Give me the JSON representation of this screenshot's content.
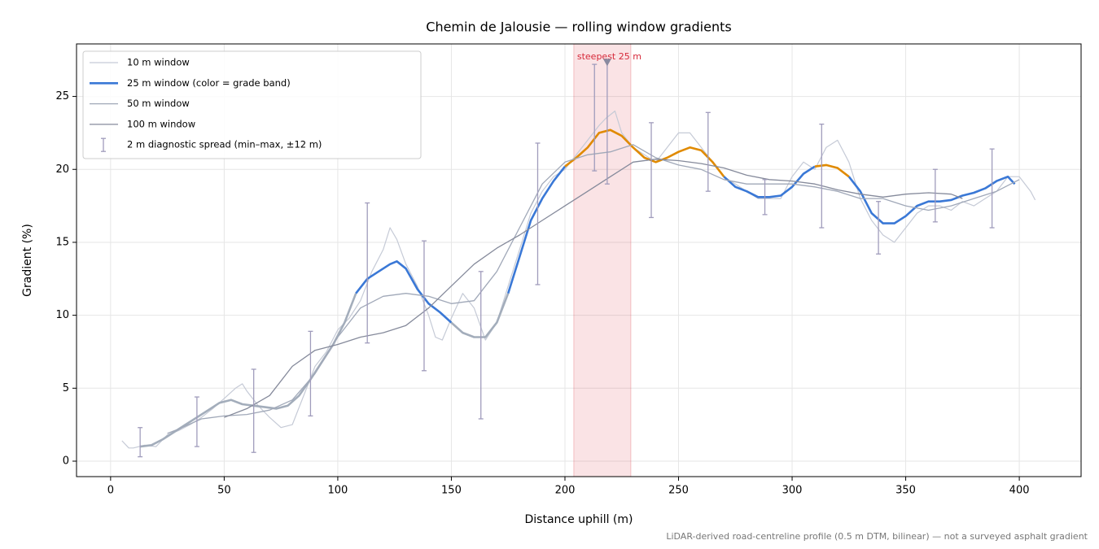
{
  "chart_data": {
    "type": "line",
    "title": "Chemin de Jalousie — rolling window gradients",
    "xlabel": "Distance uphill (m)",
    "ylabel": "Gradient (%)",
    "footnote": "LiDAR-derived road-centreline profile (0.5 m DTM, bilinear) — not a surveyed asphalt gradient",
    "xlim": [
      -15,
      427.2
    ],
    "ylim": [
      -1.06,
      28.6
    ],
    "xticks": [
      0,
      50,
      100,
      150,
      200,
      250,
      300,
      350,
      400
    ],
    "yticks": [
      0,
      5,
      10,
      15,
      20,
      25
    ],
    "grid": true,
    "legend": "upper left",
    "band_limits": [
      10,
      20
    ],
    "band_colors": [
      "#a3adbb",
      "#3a78d6",
      "#e08a00"
    ],
    "series": [
      {
        "name": "10 m window",
        "color": "#c5cad6",
        "width": 1.2,
        "x": [
          5,
          8,
          10,
          15,
          20,
          25,
          30,
          35,
          40,
          45,
          50,
          55,
          58,
          60,
          65,
          70,
          75,
          80,
          85,
          90,
          95,
          100,
          105,
          110,
          115,
          120,
          123,
          126,
          130,
          135,
          140,
          143,
          146,
          150,
          155,
          160,
          165,
          170,
          175,
          180,
          185,
          190,
          195,
          200,
          205,
          210,
          215,
          218,
          222,
          225,
          230,
          235,
          240,
          245,
          250,
          255,
          260,
          265,
          270,
          275,
          280,
          285,
          290,
          295,
          300,
          305,
          310,
          315,
          320,
          325,
          330,
          335,
          340,
          345,
          350,
          355,
          360,
          365,
          370,
          375,
          380,
          385,
          390,
          395,
          400,
          405,
          407
        ],
        "values": [
          1.4,
          0.9,
          0.9,
          1.1,
          1.0,
          1.8,
          2.1,
          2.5,
          3.0,
          3.6,
          4.3,
          5.0,
          5.3,
          4.8,
          3.8,
          3.0,
          2.3,
          2.5,
          4.5,
          6.5,
          7.5,
          9.0,
          9.8,
          11.0,
          13.0,
          14.5,
          16.0,
          15.2,
          13.5,
          12.0,
          10.0,
          8.5,
          8.3,
          9.8,
          11.5,
          10.5,
          8.3,
          9.5,
          12.0,
          14.5,
          17.0,
          18.5,
          19.5,
          20.0,
          21.0,
          22.0,
          23.0,
          23.5,
          24.0,
          22.5,
          21.5,
          21.0,
          20.5,
          21.5,
          22.5,
          22.5,
          21.5,
          20.5,
          19.5,
          19.0,
          18.5,
          18.0,
          18.0,
          18.0,
          19.5,
          20.5,
          20.0,
          21.5,
          22.0,
          20.5,
          18.0,
          16.5,
          15.5,
          15.0,
          16.0,
          17.0,
          17.5,
          17.5,
          17.2,
          17.8,
          17.5,
          18.0,
          18.5,
          19.5,
          19.5,
          18.5,
          17.9
        ]
      },
      {
        "name": "25 m window (color = grade band)",
        "color": "#3a78d6",
        "width": 2.6,
        "banded": true,
        "x": [
          13,
          18,
          23,
          28,
          33,
          38,
          43,
          48,
          53,
          58,
          63,
          68,
          73,
          78,
          83,
          88,
          93,
          98,
          103,
          108,
          113,
          118,
          123,
          126,
          130,
          135,
          140,
          145,
          150,
          155,
          160,
          165,
          170,
          175,
          180,
          185,
          190,
          195,
          200,
          205,
          210,
          215,
          220,
          225,
          230,
          235,
          240,
          245,
          250,
          255,
          260,
          265,
          270,
          275,
          280,
          285,
          290,
          295,
          300,
          305,
          310,
          315,
          320,
          325,
          330,
          335,
          340,
          345,
          350,
          355,
          360,
          365,
          370,
          375,
          380,
          385,
          390,
          395,
          398
        ],
        "values": [
          1.0,
          1.1,
          1.5,
          2.0,
          2.5,
          3.0,
          3.5,
          4.0,
          4.2,
          3.9,
          3.8,
          3.7,
          3.6,
          3.8,
          4.5,
          5.6,
          6.8,
          8.0,
          9.5,
          11.5,
          12.5,
          13.0,
          13.5,
          13.7,
          13.2,
          11.8,
          10.8,
          10.2,
          9.5,
          8.8,
          8.5,
          8.5,
          9.5,
          11.5,
          14.0,
          16.5,
          18.0,
          19.2,
          20.2,
          20.8,
          21.5,
          22.5,
          22.7,
          22.3,
          21.5,
          20.8,
          20.5,
          20.8,
          21.2,
          21.5,
          21.3,
          20.5,
          19.5,
          18.8,
          18.5,
          18.1,
          18.1,
          18.2,
          18.8,
          19.7,
          20.2,
          20.3,
          20.1,
          19.5,
          18.5,
          17.0,
          16.3,
          16.3,
          16.8,
          17.5,
          17.8,
          17.8,
          17.9,
          18.2,
          18.4,
          18.7,
          19.2,
          19.5,
          19.0
        ]
      },
      {
        "name": "50 m window",
        "color": "#a0a8b8",
        "width": 1.3,
        "x": [
          25,
          30,
          40,
          50,
          60,
          70,
          80,
          90,
          100,
          110,
          120,
          130,
          140,
          150,
          160,
          170,
          180,
          190,
          200,
          210,
          220,
          230,
          240,
          250,
          260,
          270,
          280,
          290,
          300,
          310,
          320,
          330,
          340,
          350,
          360,
          370,
          380,
          390,
          400
        ],
        "values": [
          1.9,
          2.2,
          2.9,
          3.1,
          3.2,
          3.5,
          4.2,
          6.0,
          8.5,
          10.5,
          11.3,
          11.5,
          11.3,
          10.8,
          11.0,
          13.0,
          16.0,
          19.0,
          20.5,
          21.0,
          21.2,
          21.7,
          20.8,
          20.3,
          20.0,
          19.3,
          19.0,
          19.0,
          19.0,
          18.8,
          18.5,
          18.0,
          18.0,
          17.5,
          17.2,
          17.5,
          18.0,
          18.5,
          19.3
        ]
      },
      {
        "name": "100 m window",
        "color": "#858a9b",
        "width": 1.3,
        "x": [
          50,
          60,
          70,
          80,
          90,
          100,
          110,
          120,
          130,
          140,
          150,
          160,
          170,
          180,
          190,
          200,
          210,
          220,
          230,
          240,
          250,
          260,
          270,
          280,
          290,
          300,
          310,
          320,
          330,
          340,
          350,
          360,
          370,
          375
        ],
        "values": [
          3.0,
          3.6,
          4.5,
          6.5,
          7.6,
          8.0,
          8.5,
          8.8,
          9.3,
          10.5,
          12.0,
          13.5,
          14.6,
          15.5,
          16.5,
          17.5,
          18.5,
          19.5,
          20.5,
          20.7,
          20.6,
          20.4,
          20.1,
          19.6,
          19.3,
          19.2,
          19.0,
          18.6,
          18.3,
          18.1,
          18.3,
          18.4,
          18.3,
          18.0
        ]
      }
    ],
    "errorbars": {
      "name": "2 m diagnostic spread (min–max, ±12 m)",
      "color": "#a09cbc",
      "x": [
        13,
        38,
        63,
        88,
        113,
        138,
        163,
        188,
        213,
        218.6,
        238,
        263,
        288,
        313,
        338,
        363,
        388
      ],
      "low": [
        0.3,
        1.0,
        0.6,
        3.1,
        8.1,
        6.2,
        2.9,
        12.1,
        19.9,
        19.0,
        16.7,
        18.5,
        16.9,
        16.0,
        14.2,
        16.4,
        16.0
      ],
      "high": [
        2.3,
        4.4,
        6.3,
        8.9,
        17.7,
        15.1,
        13.0,
        21.8,
        27.2,
        27.4,
        23.2,
        23.9,
        19.3,
        23.1,
        17.8,
        20.0,
        21.4
      ]
    },
    "highlight": {
      "label": "steepest 25 m",
      "span": [
        203.9,
        229.0
      ],
      "color": "#d62839",
      "marker": [
        218.6,
        27.3
      ],
      "marker_color": "#8a8aa0"
    }
  }
}
